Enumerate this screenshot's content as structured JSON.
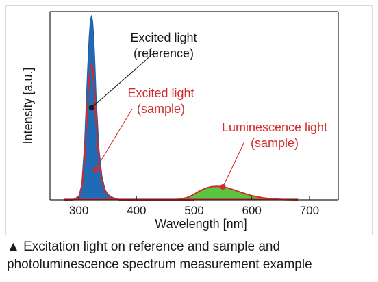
{
  "chart_data": {
    "type": "line",
    "xlabel": "Wavelength [nm]",
    "ylabel": "Intensity [a.u.]",
    "xlim": [
      250,
      750
    ],
    "ylim": [
      0,
      1.0
    ],
    "xticks": [
      300,
      400,
      500,
      600,
      700
    ],
    "grid": false,
    "legend": "none",
    "series": [
      {
        "name": "Excited light (reference)",
        "color": "#1f5fa8",
        "fill": "#1f6bb5",
        "x": [
          275,
          290,
          300,
          305,
          310,
          315,
          318,
          320,
          322,
          324,
          326,
          328,
          330,
          335,
          340,
          345,
          350,
          360,
          370,
          380,
          400,
          450,
          500
        ],
        "y": [
          0,
          0.0,
          0.02,
          0.08,
          0.3,
          0.68,
          0.87,
          0.95,
          0.98,
          0.95,
          0.86,
          0.72,
          0.55,
          0.27,
          0.13,
          0.06,
          0.03,
          0.01,
          0,
          0,
          0,
          0,
          0
        ]
      },
      {
        "name": "Excited light (sample)",
        "color": "#d42a2a",
        "x": [
          275,
          290,
          300,
          305,
          310,
          315,
          318,
          320,
          322,
          324,
          326,
          328,
          330,
          335,
          340,
          345,
          350,
          360,
          370,
          380,
          400,
          450,
          500
        ],
        "y": [
          0,
          0.0,
          0.015,
          0.06,
          0.22,
          0.5,
          0.64,
          0.7,
          0.72,
          0.7,
          0.63,
          0.53,
          0.41,
          0.2,
          0.1,
          0.05,
          0.02,
          0.01,
          0,
          0,
          0,
          0,
          0
        ]
      },
      {
        "name": "Luminescence light (sample)",
        "color": "#d42a2a",
        "fill": "#5cc443",
        "x": [
          450,
          470,
          480,
          490,
          500,
          510,
          520,
          530,
          540,
          550,
          560,
          570,
          580,
          590,
          600,
          620,
          640,
          660,
          680
        ],
        "y": [
          0,
          0.002,
          0.006,
          0.014,
          0.03,
          0.048,
          0.062,
          0.07,
          0.072,
          0.069,
          0.062,
          0.052,
          0.041,
          0.031,
          0.022,
          0.01,
          0.004,
          0.001,
          0
        ]
      }
    ],
    "annotations": [
      {
        "lines": [
          "Excited light",
          "(reference)"
        ],
        "color": "#1a1a1a",
        "marker_x": 322,
        "marker_y": 0.49
      },
      {
        "lines": [
          "Excited light",
          "(sample)"
        ],
        "color": "#d42a2a",
        "marker_x": 329,
        "marker_y": 0.16
      },
      {
        "lines": [
          "Luminescence light",
          "(sample)"
        ],
        "color": "#d42a2a",
        "marker_x": 550,
        "marker_y": 0.069
      }
    ]
  },
  "caption": {
    "line1": "▲ Excitation light on reference and sample and",
    "line2": "photoluminescence spectrum measurement example"
  }
}
